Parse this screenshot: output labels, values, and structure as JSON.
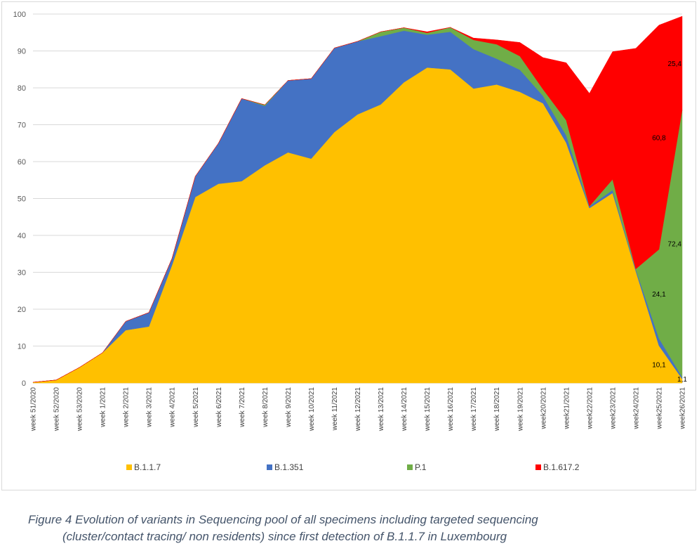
{
  "chart_data": {
    "type": "area",
    "stacked": true,
    "ylim": [
      0,
      100
    ],
    "yticks": [
      0,
      10,
      20,
      30,
      40,
      50,
      60,
      70,
      80,
      90,
      100
    ],
    "grid": true,
    "legend_position": "bottom",
    "categories": [
      "week 51/2020",
      "week 52/2020",
      "week 53/2020",
      "week 1/2021",
      "week 2/2021",
      "week 3/2021",
      "week 4/2021",
      "week 5/2021",
      "week 6/2021",
      "week 7/2021",
      "week 8/2021",
      "week 9/2021",
      "week 10/2021",
      "week 11/2021",
      "week 12/2021",
      "week 13/2021",
      "week 14/2021",
      "week 15/2021",
      "week 16/2021",
      "week 17/2021",
      "week 18/2021",
      "week 19/2021",
      "week20/2021",
      "week21/2021",
      "week22/2021",
      "week23/2021",
      "week24/2021",
      "week25/2021",
      "week26/2021"
    ],
    "series": [
      {
        "name": "B.1.1.7",
        "color": "#FFC000",
        "values": [
          0.2,
          0.8,
          4.2,
          8.2,
          14.3,
          15.3,
          32.0,
          50.4,
          54.0,
          54.7,
          59.0,
          62.5,
          60.8,
          68.0,
          72.8,
          75.5,
          81.5,
          85.5,
          85.0,
          79.8,
          80.9,
          78.9,
          75.8,
          65.1,
          47.4,
          51.5,
          30.3,
          10.1,
          1.1
        ]
      },
      {
        "name": "B.1.351",
        "color": "#4472C4",
        "values": [
          0,
          0,
          0,
          0,
          2.4,
          3.8,
          1.8,
          5.6,
          11.0,
          22.4,
          16.1,
          19.5,
          21.7,
          22.8,
          19.8,
          18.5,
          14.0,
          8.9,
          10.2,
          10.7,
          7.0,
          6.0,
          2.0,
          2.0,
          0.5,
          0.8,
          0.5,
          2.0,
          0.5
        ]
      },
      {
        "name": "P.1",
        "color": "#70AD47",
        "values": [
          0,
          0,
          0,
          0,
          0,
          0,
          0,
          0,
          0,
          0,
          0.3,
          0,
          0,
          0,
          0,
          1.2,
          0.8,
          0.5,
          1.2,
          2.5,
          3.9,
          3.7,
          1.8,
          4.1,
          0,
          2.9,
          0.1,
          24.1,
          72.4
        ]
      },
      {
        "name": "B.1.617.2",
        "color": "#FF0000",
        "values": [
          0,
          0,
          0,
          0,
          0,
          0,
          0,
          0,
          0,
          0,
          0,
          0,
          0,
          0,
          0,
          0,
          0,
          0.3,
          0,
          0.5,
          1.2,
          3.7,
          8.6,
          15.6,
          30.6,
          34.6,
          59.8,
          60.8,
          25.4
        ]
      }
    ],
    "data_labels": [
      {
        "category": "week25/2021",
        "series": "B.1.1.7",
        "text": "10,1"
      },
      {
        "category": "week26/2021",
        "series": "B.1.1.7",
        "text": "1,1"
      },
      {
        "category": "week25/2021",
        "series": "P.1",
        "text": "24,1"
      },
      {
        "category": "week26/2021",
        "series": "P.1",
        "text": "72,4"
      },
      {
        "category": "week25/2021",
        "series": "B.1.617.2",
        "text": "60,8"
      },
      {
        "category": "week26/2021",
        "series": "B.1.617.2",
        "text": "25,4"
      }
    ]
  },
  "caption": {
    "line1": "Figure 4  Evolution of variants in Sequencing pool of all specimens including targeted sequencing",
    "line2": "(cluster/contact tracing/ non residents) since first detection of B.1.1.7 in Luxembourg"
  }
}
